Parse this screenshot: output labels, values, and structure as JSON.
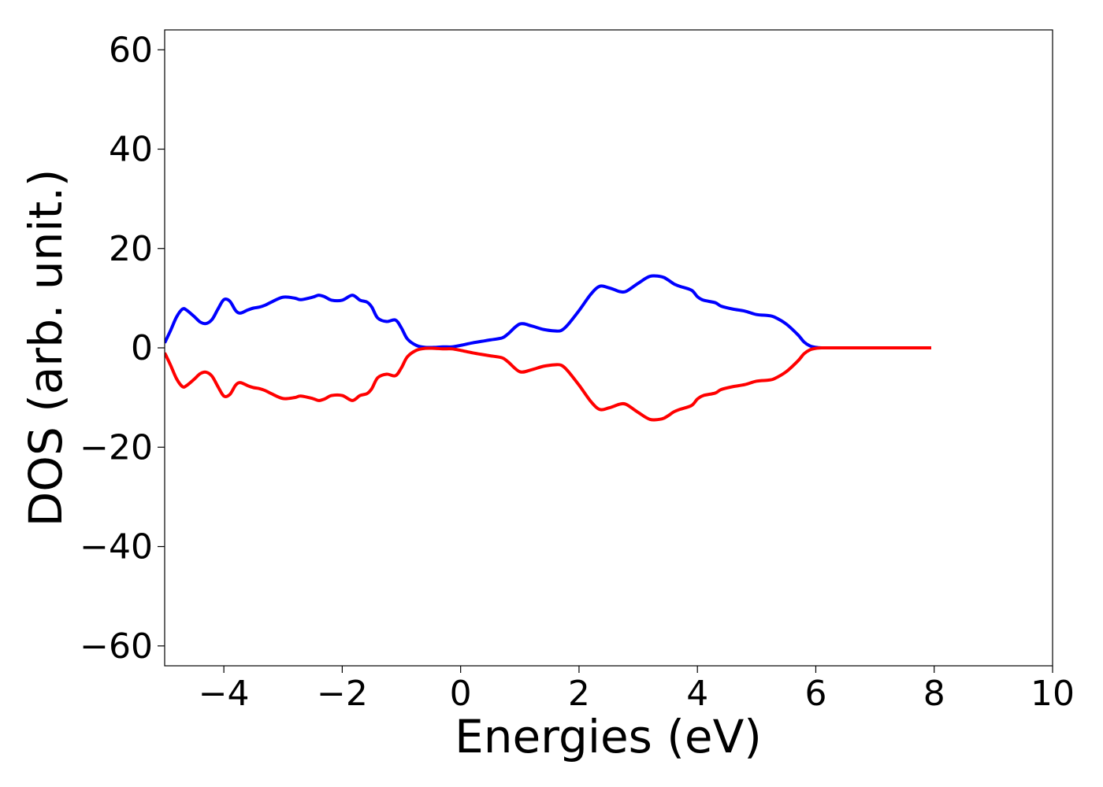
{
  "chart_data": {
    "type": "line",
    "title": "",
    "xlabel": "Energies (eV)",
    "ylabel": "DOS (arb. unit.)",
    "xlim": [
      -5,
      10
    ],
    "ylim": [
      -64,
      64
    ],
    "xticks": [
      -4,
      -2,
      0,
      2,
      4,
      6,
      8,
      10
    ],
    "yticks": [
      -60,
      -40,
      -20,
      0,
      20,
      40,
      60
    ],
    "xtick_labels": [
      "−4",
      "−2",
      "0",
      "2",
      "4",
      "6",
      "8",
      "10"
    ],
    "ytick_labels": [
      "−60",
      "−40",
      "−20",
      "0",
      "20",
      "40",
      "60"
    ],
    "grid": false,
    "legend": "none",
    "series": [
      {
        "color": "#0000ff",
        "x": [
          -5.0,
          -4.9,
          -4.8,
          -4.7,
          -4.63,
          -4.5,
          -4.4,
          -4.3,
          -4.2,
          -4.1,
          -4.0,
          -3.9,
          -3.8,
          -3.72,
          -3.6,
          -3.5,
          -3.4,
          -3.3,
          -3.2,
          -3.0,
          -2.8,
          -2.7,
          -2.5,
          -2.4,
          -2.3,
          -2.18,
          -2.0,
          -1.83,
          -1.7,
          -1.58,
          -1.5,
          -1.4,
          -1.25,
          -1.1,
          -1.0,
          -0.9,
          -0.75,
          -0.6,
          -0.45,
          -0.3,
          -0.15,
          0.0,
          0.2,
          0.4,
          0.5,
          0.7,
          0.8,
          1.0,
          1.2,
          1.4,
          1.6,
          1.7,
          1.8,
          2.0,
          2.2,
          2.35,
          2.5,
          2.6,
          2.7,
          2.8,
          3.0,
          3.2,
          3.4,
          3.5,
          3.6,
          3.7,
          3.9,
          4.0,
          4.1,
          4.3,
          4.4,
          4.6,
          4.8,
          5.0,
          5.2,
          5.3,
          5.5,
          5.7,
          5.8,
          5.9,
          6.0,
          6.1,
          6.2,
          6.4,
          6.6,
          7.0,
          7.5,
          7.95
        ],
        "y": [
          1,
          3.5,
          6.2,
          7.8,
          7.6,
          6.3,
          5.2,
          4.9,
          5.7,
          7.8,
          9.7,
          9.4,
          7.5,
          7.0,
          7.6,
          8.0,
          8.2,
          8.6,
          9.2,
          10.2,
          10.0,
          9.7,
          10.2,
          10.6,
          10.3,
          9.6,
          9.6,
          10.6,
          9.6,
          9.2,
          8.2,
          6.0,
          5.3,
          5.6,
          4.0,
          1.8,
          0.5,
          0.1,
          0.1,
          0.2,
          0.2,
          0.5,
          1.0,
          1.4,
          1.6,
          2.0,
          2.8,
          4.8,
          4.4,
          3.7,
          3.4,
          3.5,
          4.5,
          7.5,
          10.8,
          12.4,
          12.1,
          11.7,
          11.3,
          11.4,
          13.0,
          14.4,
          14.3,
          13.7,
          12.9,
          12.4,
          11.6,
          10.3,
          9.6,
          9.1,
          8.4,
          7.8,
          7.4,
          6.7,
          6.5,
          6.2,
          4.8,
          2.6,
          1.2,
          0.4,
          0.1,
          0.0,
          0.0,
          0.0,
          0.0,
          0.0,
          0.0,
          0.0
        ]
      },
      {
        "color": "#ff0000",
        "x": [
          -5.0,
          -4.9,
          -4.8,
          -4.7,
          -4.63,
          -4.5,
          -4.4,
          -4.3,
          -4.2,
          -4.1,
          -4.0,
          -3.9,
          -3.8,
          -3.72,
          -3.6,
          -3.5,
          -3.4,
          -3.3,
          -3.2,
          -3.0,
          -2.8,
          -2.7,
          -2.5,
          -2.4,
          -2.3,
          -2.18,
          -2.0,
          -1.83,
          -1.7,
          -1.58,
          -1.5,
          -1.4,
          -1.25,
          -1.1,
          -1.0,
          -0.9,
          -0.75,
          -0.6,
          -0.45,
          -0.3,
          -0.15,
          0.0,
          0.2,
          0.4,
          0.5,
          0.7,
          0.8,
          1.0,
          1.2,
          1.4,
          1.6,
          1.7,
          1.8,
          2.0,
          2.2,
          2.35,
          2.5,
          2.6,
          2.7,
          2.8,
          3.0,
          3.2,
          3.4,
          3.5,
          3.6,
          3.7,
          3.9,
          4.0,
          4.1,
          4.3,
          4.4,
          4.6,
          4.8,
          5.0,
          5.2,
          5.3,
          5.5,
          5.7,
          5.8,
          5.9,
          6.0,
          6.1,
          6.2,
          6.4,
          6.6,
          7.0,
          7.5,
          7.95
        ],
        "y": [
          -1,
          -3.5,
          -6.2,
          -7.8,
          -7.6,
          -6.3,
          -5.2,
          -4.9,
          -5.7,
          -7.8,
          -9.7,
          -9.4,
          -7.5,
          -7.0,
          -7.6,
          -8.0,
          -8.2,
          -8.6,
          -9.2,
          -10.2,
          -10.0,
          -9.7,
          -10.2,
          -10.6,
          -10.3,
          -9.6,
          -9.6,
          -10.6,
          -9.6,
          -9.2,
          -8.2,
          -6.0,
          -5.3,
          -5.6,
          -4.0,
          -1.8,
          -0.5,
          -0.1,
          -0.1,
          -0.2,
          -0.2,
          -0.5,
          -1.0,
          -1.4,
          -1.6,
          -2.0,
          -2.8,
          -4.8,
          -4.4,
          -3.7,
          -3.4,
          -3.5,
          -4.5,
          -7.5,
          -10.8,
          -12.4,
          -12.1,
          -11.7,
          -11.3,
          -11.4,
          -13.0,
          -14.4,
          -14.3,
          -13.7,
          -12.9,
          -12.4,
          -11.6,
          -10.3,
          -9.6,
          -9.1,
          -8.4,
          -7.8,
          -7.4,
          -6.7,
          -6.5,
          -6.2,
          -4.8,
          -2.6,
          -1.2,
          -0.4,
          -0.1,
          0.0,
          0.0,
          0.0,
          0.0,
          0.0,
          0.0,
          0.0
        ]
      }
    ]
  }
}
